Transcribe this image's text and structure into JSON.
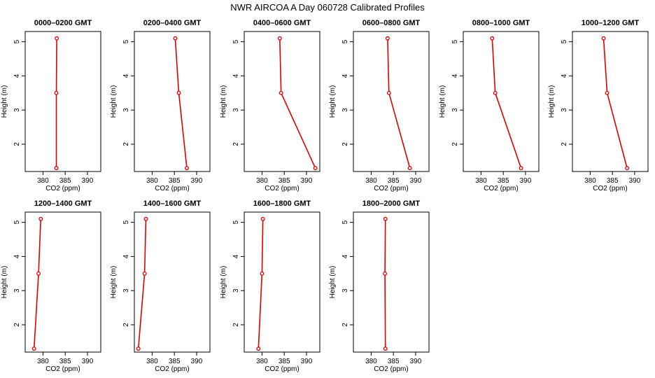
{
  "figure_title": "NWR AIRCOA A  Day 060728  Calibrated Profiles",
  "chart_data": [
    {
      "type": "line",
      "title": "0000–0200 GMT",
      "xlabel": "CO2 (ppm)",
      "ylabel": "Height (m)",
      "xlim": [
        376,
        393
      ],
      "ylim": [
        1.2,
        5.3
      ],
      "xticks": [
        380,
        385,
        390
      ],
      "yticks": [
        2,
        3,
        4,
        5
      ],
      "x": [
        383.0,
        383.0,
        383.1
      ],
      "y": [
        1.3,
        3.5,
        5.1
      ],
      "color": "#dd0000"
    },
    {
      "type": "line",
      "title": "0200–0400 GMT",
      "xlabel": "CO2 (ppm)",
      "ylabel": "Height (m)",
      "xlim": [
        376,
        393
      ],
      "ylim": [
        1.2,
        5.3
      ],
      "xticks": [
        380,
        385,
        390
      ],
      "yticks": [
        2,
        3,
        4,
        5
      ],
      "x": [
        387.8,
        386.0,
        385.2
      ],
      "y": [
        1.3,
        3.5,
        5.1
      ],
      "color": "#dd0000"
    },
    {
      "type": "line",
      "title": "0400–0600 GMT",
      "xlabel": "CO2 (ppm)",
      "ylabel": "Height (m)",
      "xlim": [
        376,
        393
      ],
      "ylim": [
        1.2,
        5.3
      ],
      "xticks": [
        380,
        385,
        390
      ],
      "yticks": [
        2,
        3,
        4,
        5
      ],
      "x": [
        392.0,
        384.3,
        384.0
      ],
      "y": [
        1.3,
        3.5,
        5.1
      ],
      "color": "#dd0000"
    },
    {
      "type": "line",
      "title": "0600–0800 GMT",
      "xlabel": "CO2 (ppm)",
      "ylabel": "Height (m)",
      "xlim": [
        376,
        393
      ],
      "ylim": [
        1.2,
        5.3
      ],
      "xticks": [
        380,
        385,
        390
      ],
      "yticks": [
        2,
        3,
        4,
        5
      ],
      "x": [
        388.7,
        384.0,
        383.7
      ],
      "y": [
        1.3,
        3.5,
        5.1
      ],
      "color": "#dd0000"
    },
    {
      "type": "line",
      "title": "0800–1000 GMT",
      "xlabel": "CO2 (ppm)",
      "ylabel": "Height (m)",
      "xlim": [
        376,
        393
      ],
      "ylim": [
        1.2,
        5.3
      ],
      "xticks": [
        380,
        385,
        390
      ],
      "yticks": [
        2,
        3,
        4,
        5
      ],
      "x": [
        389.0,
        383.2,
        382.5
      ],
      "y": [
        1.3,
        3.5,
        5.1
      ],
      "color": "#dd0000"
    },
    {
      "type": "line",
      "title": "1000–1200 GMT",
      "xlabel": "CO2 (ppm)",
      "ylabel": "Height (m)",
      "xlim": [
        376,
        393
      ],
      "ylim": [
        1.2,
        5.3
      ],
      "xticks": [
        380,
        385,
        390
      ],
      "yticks": [
        2,
        3,
        4,
        5
      ],
      "x": [
        388.3,
        383.8,
        383.0
      ],
      "y": [
        1.3,
        3.5,
        5.1
      ],
      "color": "#dd0000"
    },
    {
      "type": "line",
      "title": "1200–1400 GMT",
      "xlabel": "CO2 (ppm)",
      "ylabel": "Height (m)",
      "xlim": [
        376,
        393
      ],
      "ylim": [
        1.2,
        5.3
      ],
      "xticks": [
        380,
        385,
        390
      ],
      "yticks": [
        2,
        3,
        4,
        5
      ],
      "x": [
        378.0,
        379.0,
        379.5
      ],
      "y": [
        1.3,
        3.5,
        5.1
      ],
      "color": "#dd0000"
    },
    {
      "type": "line",
      "title": "1400–1600 GMT",
      "xlabel": "CO2 (ppm)",
      "ylabel": "Height (m)",
      "xlim": [
        376,
        393
      ],
      "ylim": [
        1.2,
        5.3
      ],
      "xticks": [
        380,
        385,
        390
      ],
      "yticks": [
        2,
        3,
        4,
        5
      ],
      "x": [
        376.9,
        378.3,
        378.6
      ],
      "y": [
        1.3,
        3.5,
        5.1
      ],
      "color": "#dd0000"
    },
    {
      "type": "line",
      "title": "1600–1800 GMT",
      "xlabel": "CO2 (ppm)",
      "ylabel": "Height (m)",
      "xlim": [
        376,
        393
      ],
      "ylim": [
        1.2,
        5.3
      ],
      "xticks": [
        380,
        385,
        390
      ],
      "yticks": [
        2,
        3,
        4,
        5
      ],
      "x": [
        379.2,
        380.0,
        380.2
      ],
      "y": [
        1.3,
        3.5,
        5.1
      ],
      "color": "#dd0000"
    },
    {
      "type": "line",
      "title": "1800–2000 GMT",
      "xlabel": "CO2 (ppm)",
      "ylabel": "Height (m)",
      "xlim": [
        376,
        393
      ],
      "ylim": [
        1.2,
        5.3
      ],
      "xticks": [
        380,
        385,
        390
      ],
      "yticks": [
        2,
        3,
        4,
        5
      ],
      "x": [
        383.2,
        383.1,
        383.2
      ],
      "y": [
        1.3,
        3.5,
        5.1
      ],
      "color": "#dd0000"
    }
  ]
}
